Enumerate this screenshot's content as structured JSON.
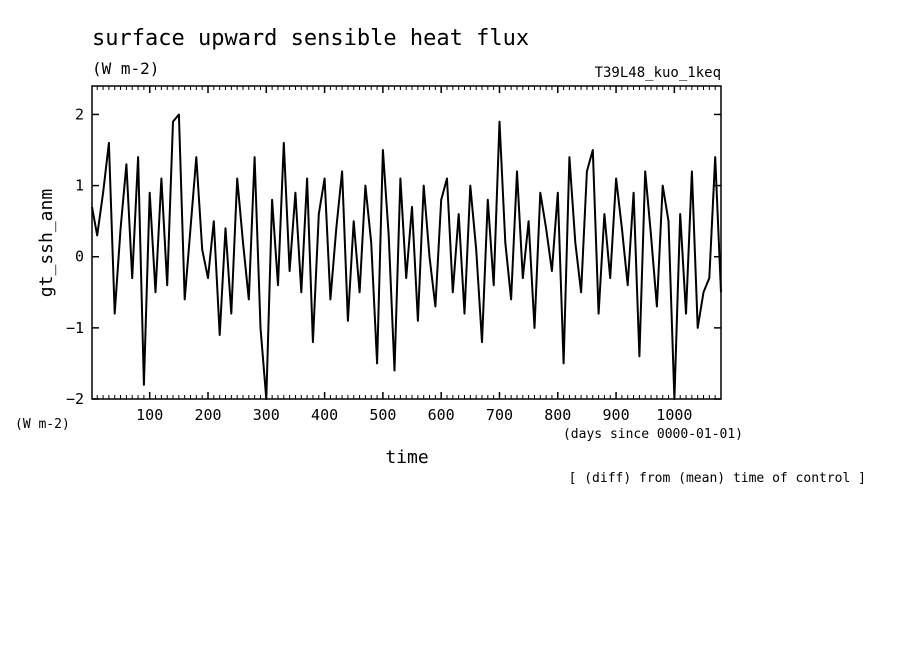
{
  "chart_data": {
    "type": "line",
    "title": "surface upward sensible heat flux",
    "subtitle": "(W m-2)",
    "experiment": "T39L48_kuo_1keq",
    "ylabel": "gt_ssh_anm",
    "yunit": "(W m-2)",
    "xlabel": "time",
    "xunit": "(days since 0000-01-01)",
    "note": "[ (diff) from (mean) time of control ]",
    "xlim": [
      1,
      1080
    ],
    "ylim": [
      -2,
      2.4
    ],
    "xticks": [
      100,
      200,
      300,
      400,
      500,
      600,
      700,
      800,
      900,
      1000
    ],
    "yticks": [
      -2,
      -1,
      0,
      1,
      2
    ],
    "line_color": "#000000",
    "series": [
      {
        "x": [
          1,
          10,
          20,
          30,
          40,
          50,
          60,
          70,
          80,
          90,
          100,
          110,
          120,
          130,
          140,
          150,
          160,
          170,
          180,
          190,
          200,
          210,
          220,
          230,
          240,
          250,
          260,
          270,
          280,
          290,
          300,
          310,
          320,
          330,
          340,
          350,
          360,
          370,
          380,
          390,
          400,
          410,
          420,
          430,
          440,
          450,
          460,
          470,
          480,
          490,
          500,
          510,
          520,
          530,
          540,
          550,
          560,
          570,
          580,
          590,
          600,
          610,
          620,
          630,
          640,
          650,
          660,
          670,
          680,
          690,
          700,
          710,
          720,
          730,
          740,
          750,
          760,
          770,
          780,
          790,
          800,
          810,
          820,
          830,
          840,
          850,
          860,
          870,
          880,
          890,
          900,
          910,
          920,
          930,
          940,
          950,
          960,
          970,
          980,
          990,
          1000,
          1010,
          1020,
          1030,
          1040,
          1050,
          1060,
          1070,
          1080
        ],
        "values": [
          0.7,
          0.3,
          0.9,
          1.6,
          -0.8,
          0.4,
          1.3,
          -0.3,
          1.4,
          -1.8,
          0.9,
          -0.5,
          1.1,
          -0.4,
          1.9,
          2.0,
          -0.6,
          0.4,
          1.4,
          0.1,
          -0.3,
          0.5,
          -1.1,
          0.4,
          -0.8,
          1.1,
          0.2,
          -0.6,
          1.4,
          -1.0,
          -2.0,
          0.8,
          -0.4,
          1.6,
          -0.2,
          0.9,
          -0.5,
          1.1,
          -1.2,
          0.6,
          1.1,
          -0.6,
          0.4,
          1.2,
          -0.9,
          0.5,
          -0.5,
          1.0,
          0.2,
          -1.5,
          1.5,
          0.3,
          -1.6,
          1.1,
          -0.3,
          0.7,
          -0.9,
          1.0,
          0.0,
          -0.7,
          0.8,
          1.1,
          -0.5,
          0.6,
          -0.8,
          1.0,
          0.1,
          -1.2,
          0.8,
          -0.4,
          1.9,
          0.2,
          -0.6,
          1.2,
          -0.3,
          0.5,
          -1.0,
          0.9,
          0.4,
          -0.2,
          0.9,
          -1.5,
          1.4,
          0.2,
          -0.5,
          1.2,
          1.5,
          -0.8,
          0.6,
          -0.3,
          1.1,
          0.4,
          -0.4,
          0.9,
          -1.4,
          1.2,
          0.3,
          -0.7,
          1.0,
          0.5,
          -2.0,
          0.6,
          -0.8,
          1.2,
          -1.0,
          -0.5,
          -0.3,
          1.4,
          -0.5
        ]
      }
    ]
  }
}
